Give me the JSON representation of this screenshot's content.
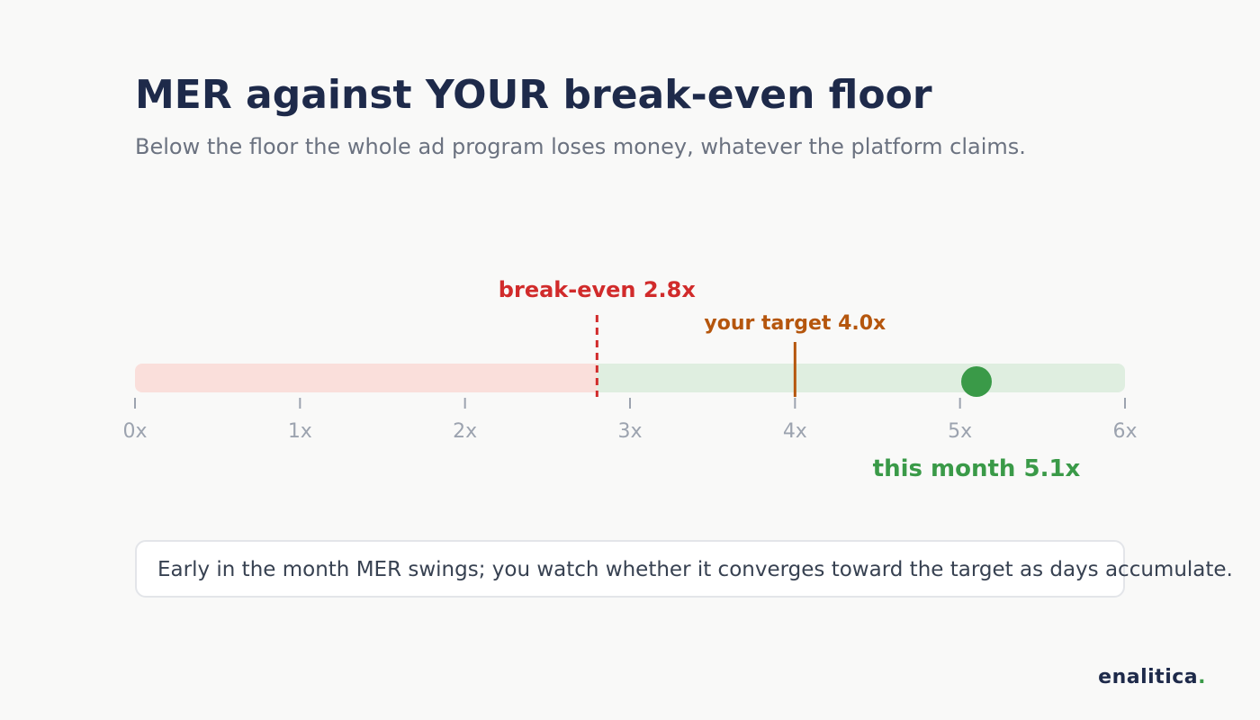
{
  "title": "MER against YOUR break-even floor",
  "subtitle": "Below the floor the whole ad program loses money, whatever the platform claims.",
  "chart_data": {
    "type": "bullet",
    "axis": {
      "min": 0,
      "max": 6,
      "ticks": [
        0,
        1,
        2,
        3,
        4,
        5,
        6
      ],
      "tick_labels": [
        "0x",
        "1x",
        "2x",
        "3x",
        "4x",
        "5x",
        "6x"
      ]
    },
    "zones": [
      {
        "from": 0,
        "to": 2.8,
        "color": "#fadfdb"
      },
      {
        "from": 2.8,
        "to": 6,
        "color": "#dfeee0"
      }
    ],
    "break_even": {
      "value": 2.8,
      "label": "break-even 2.8x",
      "color": "#d12b2b"
    },
    "target": {
      "value": 4.0,
      "label": "your target 4.0x",
      "color": "#b5560d"
    },
    "current": {
      "value": 5.1,
      "label": "this month 5.1x",
      "color": "#3a9a48"
    }
  },
  "note": "Early in the month MER swings; you watch whether it converges toward the target as days accumulate.",
  "brand": {
    "name": "enalitica",
    "dot": "."
  }
}
